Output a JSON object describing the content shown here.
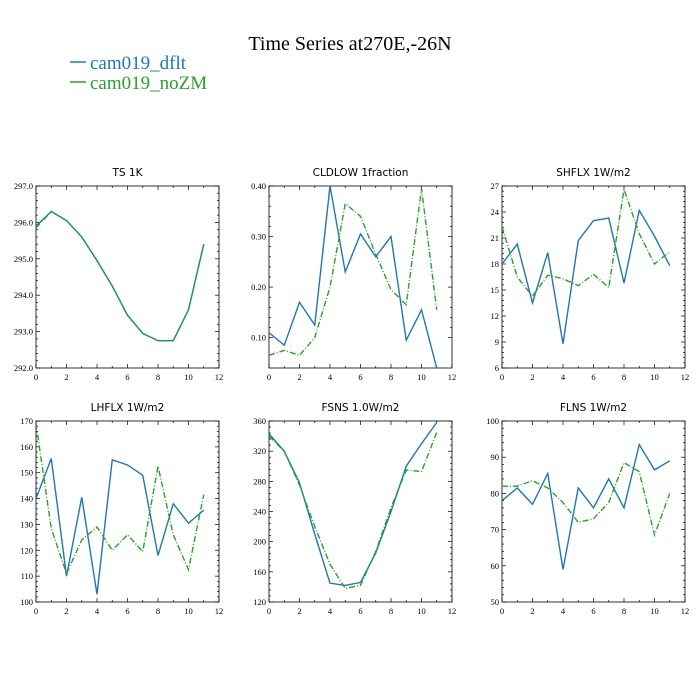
{
  "title": "Time Series at270E,-26N",
  "legend": [
    {
      "label": "cam019_dflt",
      "color": "#1f77b4"
    },
    {
      "label": "cam019_noZM",
      "color": "#2ca02c"
    }
  ],
  "chart_data": [
    {
      "type": "line",
      "title": "TS   1K",
      "xlim": [
        0,
        12
      ],
      "ylim": [
        292.0,
        297.0
      ],
      "xticks": [
        0,
        2,
        4,
        6,
        8,
        10,
        12
      ],
      "yticks": [
        292.0,
        293.0,
        294.0,
        295.0,
        296.0,
        297.0
      ],
      "ytick_labels": [
        "292.0",
        "293.0",
        "294.0",
        "295.0",
        "296.0",
        "297.0"
      ],
      "x": [
        0,
        1,
        2,
        3,
        4,
        5,
        6,
        7,
        8,
        9,
        10,
        11
      ],
      "series": [
        {
          "name": "cam019_dflt",
          "values": [
            295.9,
            296.3,
            296.05,
            295.6,
            294.95,
            294.25,
            293.45,
            292.95,
            292.75,
            292.75,
            293.6,
            295.4
          ]
        },
        {
          "name": "cam019_noZM",
          "values": [
            295.85,
            296.3,
            296.05,
            295.6,
            294.95,
            294.25,
            293.45,
            292.95,
            292.75,
            292.75,
            293.6,
            295.4
          ]
        }
      ]
    },
    {
      "type": "line",
      "title": "CLDLOW   1fraction",
      "xlim": [
        0,
        12
      ],
      "ylim": [
        0.04,
        0.4
      ],
      "xticks": [
        0,
        2,
        4,
        6,
        8,
        10,
        12
      ],
      "yticks": [
        0.1,
        0.2,
        0.3,
        0.4
      ],
      "ytick_labels": [
        "0.10",
        "0.20",
        "0.30",
        "0.40"
      ],
      "x": [
        0,
        1,
        2,
        3,
        4,
        5,
        6,
        7,
        8,
        9,
        10,
        11
      ],
      "series": [
        {
          "name": "cam019_dflt",
          "values": [
            0.11,
            0.085,
            0.17,
            0.125,
            0.4,
            0.23,
            0.305,
            0.26,
            0.3,
            0.095,
            0.155,
            0.04
          ]
        },
        {
          "name": "cam019_noZM",
          "values": [
            0.065,
            0.075,
            0.065,
            0.1,
            0.2,
            0.365,
            0.34,
            0.265,
            0.195,
            0.165,
            0.395,
            0.155
          ]
        }
      ]
    },
    {
      "type": "line",
      "title": "SHFLX   1W/m2",
      "xlim": [
        0,
        12
      ],
      "ylim": [
        6,
        27
      ],
      "xticks": [
        0,
        2,
        4,
        6,
        8,
        10,
        12
      ],
      "yticks": [
        6,
        9,
        12,
        15,
        18,
        21,
        24,
        27
      ],
      "ytick_labels": [
        "6",
        "9",
        "12",
        "15",
        "18",
        "21",
        "24",
        "27"
      ],
      "x": [
        0,
        1,
        2,
        3,
        4,
        5,
        6,
        7,
        8,
        9,
        10,
        11
      ],
      "series": [
        {
          "name": "cam019_dflt",
          "values": [
            18.0,
            20.3,
            13.5,
            19.3,
            8.8,
            20.7,
            23.0,
            23.3,
            15.8,
            24.2,
            21.2,
            17.8
          ]
        },
        {
          "name": "cam019_noZM",
          "values": [
            22.3,
            16.5,
            14.3,
            16.7,
            16.3,
            15.5,
            16.8,
            15.3,
            26.6,
            21.5,
            18.0,
            19.4
          ]
        }
      ]
    },
    {
      "type": "line",
      "title": "LHFLX   1W/m2",
      "xlim": [
        0,
        12
      ],
      "ylim": [
        100,
        170
      ],
      "xticks": [
        0,
        2,
        4,
        6,
        8,
        10,
        12
      ],
      "yticks": [
        100,
        110,
        120,
        130,
        140,
        150,
        160,
        170
      ],
      "ytick_labels": [
        "100",
        "110",
        "120",
        "130",
        "140",
        "150",
        "160",
        "170"
      ],
      "x": [
        0,
        1,
        2,
        3,
        4,
        5,
        6,
        7,
        8,
        9,
        10,
        11
      ],
      "series": [
        {
          "name": "cam019_dflt",
          "values": [
            140,
            155.5,
            110,
            140.5,
            103,
            155,
            153,
            149,
            118,
            138,
            130.5,
            135.5
          ]
        },
        {
          "name": "cam019_noZM",
          "values": [
            169,
            128.5,
            111,
            124,
            129,
            120,
            126,
            119.5,
            152.5,
            126,
            112.5,
            141.5
          ]
        }
      ]
    },
    {
      "type": "line",
      "title": "FSNS   1.0W/m2",
      "xlim": [
        0,
        12
      ],
      "ylim": [
        120,
        360
      ],
      "xticks": [
        0,
        2,
        4,
        6,
        8,
        10,
        12
      ],
      "yticks": [
        120,
        160,
        200,
        240,
        280,
        320,
        360
      ],
      "ytick_labels": [
        "120",
        "160",
        "200",
        "240",
        "280",
        "320",
        "360"
      ],
      "x": [
        0,
        1,
        2,
        3,
        4,
        5,
        6,
        7,
        8,
        9,
        10,
        11
      ],
      "series": [
        {
          "name": "cam019_dflt",
          "values": [
            343,
            320,
            278,
            210,
            145,
            142,
            146,
            185,
            240,
            300,
            330,
            358
          ]
        },
        {
          "name": "cam019_noZM",
          "values": [
            340,
            320,
            275,
            220,
            170,
            138,
            142,
            187,
            245,
            295,
            293,
            345
          ]
        }
      ]
    },
    {
      "type": "line",
      "title": "FLNS   1W/m2",
      "xlim": [
        0,
        12
      ],
      "ylim": [
        50,
        100
      ],
      "xticks": [
        0,
        2,
        4,
        6,
        8,
        10,
        12
      ],
      "yticks": [
        50,
        60,
        70,
        80,
        90,
        100
      ],
      "ytick_labels": [
        "50",
        "60",
        "70",
        "80",
        "90",
        "100"
      ],
      "x": [
        0,
        1,
        2,
        3,
        4,
        5,
        6,
        7,
        8,
        9,
        10,
        11
      ],
      "series": [
        {
          "name": "cam019_dflt",
          "values": [
            78,
            81.5,
            77,
            85.5,
            59,
            81.5,
            76,
            84,
            76,
            93.5,
            86.5,
            89
          ]
        },
        {
          "name": "cam019_noZM",
          "values": [
            82,
            82,
            83.5,
            81.5,
            77.5,
            72,
            73,
            77.5,
            88.5,
            86,
            68.5,
            80
          ]
        }
      ]
    }
  ]
}
